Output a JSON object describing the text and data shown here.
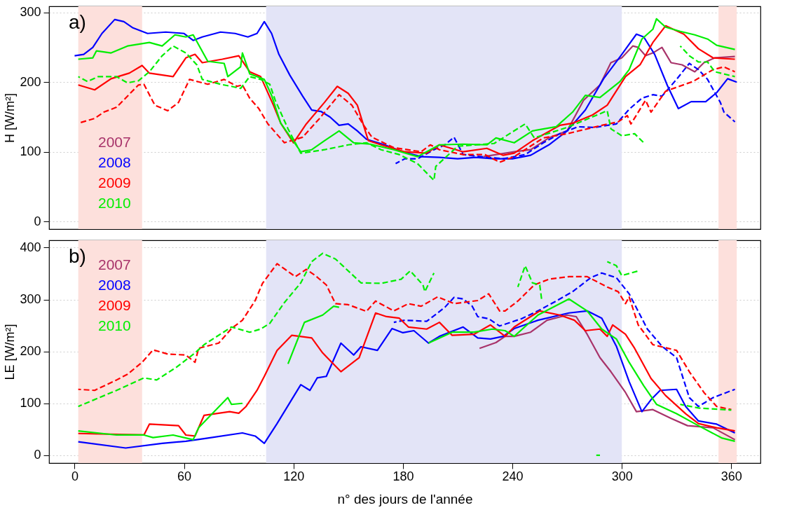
{
  "chart_data": [
    {
      "type": "line",
      "title": "a)",
      "ylabel": "H [W/m²]",
      "xlim": [
        -14,
        376
      ],
      "ylim": [
        -11,
        309
      ],
      "xticks": [
        0,
        60,
        120,
        180,
        240,
        300,
        360
      ],
      "yticks": [
        0,
        100,
        200,
        300
      ],
      "grid": "y",
      "legend": "left",
      "tick_labels": "y",
      "line_style": "solid",
      "marker": "none",
      "bands": [
        {
          "axis": "x",
          "from": 2,
          "to": 37,
          "color": "#fde0dc"
        },
        {
          "axis": "x",
          "from": 105,
          "to": 300,
          "color": "#e3e4f7"
        },
        {
          "axis": "x",
          "from": 353,
          "to": 363,
          "color": "#fde0dc"
        }
      ],
      "series": [
        {
          "name": "2007",
          "color": "#a8336a",
          "x": [
            224,
            241,
            250,
            260,
            270,
            279,
            288,
            294,
            300,
            306,
            309,
            313,
            317,
            322,
            327,
            333,
            340,
            345,
            351,
            362
          ],
          "values": [
            93,
            100,
            103,
            120,
            130,
            174,
            196,
            228,
            235,
            252,
            250,
            238,
            242,
            250,
            228,
            225,
            215,
            228,
            235,
            237
          ]
        },
        {
          "name": "2008",
          "color": "#0000ff",
          "x": [
            0,
            5,
            10,
            15,
            22,
            27,
            32,
            40,
            50,
            60,
            65,
            70,
            80,
            88,
            95,
            100,
            104,
            108,
            112,
            118,
            125,
            130,
            135,
            140,
            145,
            150,
            155,
            160,
            170,
            180,
            190,
            200,
            210,
            220,
            230,
            240,
            250,
            260,
            270,
            280,
            290,
            300,
            308,
            312,
            318,
            325,
            331,
            338,
            346,
            352,
            358,
            363
          ],
          "values": [
            238,
            240,
            250,
            270,
            290,
            287,
            278,
            270,
            272,
            270,
            260,
            265,
            272,
            270,
            265,
            270,
            287,
            270,
            240,
            210,
            180,
            160,
            158,
            150,
            138,
            140,
            130,
            118,
            110,
            100,
            93,
            92,
            90,
            92,
            90,
            90,
            95,
            110,
            130,
            160,
            205,
            240,
            269,
            265,
            240,
            195,
            162,
            172,
            172,
            185,
            205,
            200
          ]
        },
        {
          "color": "#0000ff",
          "line_style": "dashed",
          "x": [
            176,
            181,
            188,
            197,
            203,
            208,
            213,
            223,
            235,
            247,
            257,
            266,
            276,
            285,
            297,
            304,
            311,
            317,
            322,
            330,
            337,
            342,
            347,
            354,
            356,
            362
          ],
          "values": [
            83,
            90,
            90,
            103,
            110,
            121,
            96,
            93,
            90,
            96,
            113,
            126,
            136,
            135,
            140,
            161,
            177,
            182,
            180,
            204,
            227,
            218,
            204,
            171,
            157,
            143
          ]
        },
        {
          "name": "2009",
          "color": "#ff0000",
          "x": [
            2,
            11,
            20,
            30,
            37,
            41,
            54,
            61,
            66,
            70,
            81,
            90,
            96,
            102,
            109,
            113,
            120,
            127,
            137,
            144,
            150,
            155,
            161,
            168,
            181,
            193,
            200,
            213,
            226,
            235,
            241,
            251,
            266,
            273,
            284,
            292,
            302,
            310,
            317,
            324,
            334,
            342,
            350,
            362
          ],
          "values": [
            196,
            189,
            205,
            213,
            224,
            213,
            208,
            235,
            240,
            228,
            233,
            238,
            215,
            208,
            167,
            141,
            113,
            140,
            171,
            194,
            184,
            167,
            116,
            110,
            100,
            98,
            110,
            100,
            105,
            95,
            98,
            116,
            138,
            141,
            153,
            167,
            208,
            225,
            257,
            281,
            269,
            248,
            235,
            233
          ]
        },
        {
          "color": "#ff0000",
          "line_style": "dashed",
          "x": [
            2,
            11,
            16,
            23,
            35,
            38,
            44,
            51,
            57,
            63,
            73,
            82,
            89,
            92,
            96,
            101,
            106,
            115,
            125,
            134,
            145,
            152,
            158,
            163,
            175,
            190,
            195,
            200,
            213,
            225,
            233,
            241,
            257,
            270,
            289,
            298,
            303,
            305,
            313,
            316,
            324,
            339,
            350,
            356,
            362
          ],
          "values": [
            141,
            148,
            157,
            164,
            196,
            197,
            167,
            159,
            171,
            204,
            197,
            204,
            194,
            196,
            177,
            162,
            140,
            113,
            121,
            147,
            182,
            167,
            140,
            121,
            106,
            100,
            110,
            103,
            96,
            96,
            85,
            93,
            120,
            126,
            138,
            143,
            152,
            140,
            174,
            157,
            187,
            201,
            218,
            222,
            215
          ]
        },
        {
          "name": "2010",
          "color": "#00ee00",
          "x": [
            2,
            10,
            12,
            20,
            29,
            41,
            48,
            55,
            61,
            65,
            73,
            82,
            84,
            91,
            92,
            96,
            104,
            108,
            113,
            124,
            130,
            137,
            145,
            153,
            162,
            175,
            188,
            200,
            213,
            226,
            231,
            241,
            251,
            264,
            273,
            280,
            288,
            299,
            304,
            311,
            317,
            319,
            324,
            332,
            340,
            347,
            352,
            362
          ],
          "values": [
            233,
            235,
            245,
            242,
            252,
            257,
            252,
            268,
            265,
            268,
            230,
            227,
            208,
            222,
            242,
            212,
            204,
            181,
            141,
            100,
            103,
            116,
            130,
            113,
            111,
            103,
            93,
            110,
            111,
            110,
            120,
            113,
            130,
            136,
            157,
            181,
            178,
            201,
            218,
            262,
            276,
            291,
            279,
            273,
            268,
            262,
            253,
            247
          ]
        },
        {
          "color": "#00ee00",
          "line_style": "dashed",
          "x": [
            2,
            7,
            13,
            23,
            29,
            35,
            41,
            48,
            54,
            61,
            67,
            70,
            80,
            86,
            91,
            96,
            102,
            107,
            110,
            117,
            124,
            137,
            150,
            160,
            168,
            178,
            188,
            197,
            198,
            210,
            230,
            247,
            252,
            270,
            292,
            294,
            300,
            307,
            312,
            320,
            332,
            337,
            342,
            347,
            351,
            362
          ],
          "values": [
            208,
            201,
            208,
            208,
            199,
            202,
            215,
            238,
            252,
            242,
            225,
            204,
            197,
            194,
            191,
            208,
            204,
            197,
            174,
            133,
            98,
            103,
            110,
            113,
            103,
            96,
            83,
            59,
            79,
            108,
            112,
            140,
            120,
            135,
            159,
            133,
            123,
            126,
            113,
            null,
            252,
            238,
            229,
            229,
            215,
            208
          ]
        }
      ]
    },
    {
      "type": "line",
      "title": "b)",
      "ylabel": "LE [W/m²]",
      "xlabel": "n° des jours de l'année",
      "xlim": [
        -14,
        376
      ],
      "ylim": [
        -15,
        414
      ],
      "xticks": [
        0,
        60,
        120,
        180,
        240,
        300,
        360
      ],
      "yticks": [
        0,
        100,
        200,
        300,
        400
      ],
      "grid": "y",
      "legend": "top left",
      "line_style": "solid",
      "marker": "none",
      "bands": [
        {
          "axis": "x",
          "from": 2,
          "to": 37,
          "color": "#fde0dc"
        },
        {
          "axis": "x",
          "from": 105,
          "to": 300,
          "color": "#e3e4f7"
        },
        {
          "axis": "x",
          "from": 353,
          "to": 363,
          "color": "#fde0dc"
        }
      ],
      "series": [
        {
          "name": "2007",
          "color": "#a8336a",
          "x": [
            222,
            231,
            236,
            241,
            250,
            259,
            270,
            275,
            281,
            288,
            294,
            302,
            308,
            317,
            327,
            336,
            350,
            362
          ],
          "values": [
            206,
            217,
            229,
            229,
            237,
            260,
            270,
            267,
            233,
            188,
            161,
            121,
            84,
            88,
            71,
            57,
            53,
            30
          ]
        },
        {
          "name": "2008",
          "color": "#0000ff",
          "x": [
            2,
            28,
            48,
            61,
            73,
            92,
            99,
            104,
            111,
            124,
            129,
            133,
            138,
            146,
            153,
            157,
            166,
            174,
            180,
            186,
            194,
            200,
            213,
            221,
            228,
            235,
            241,
            254,
            271,
            281,
            289,
            297,
            304,
            311,
            316,
            321,
            330,
            335,
            342,
            352,
            362
          ],
          "values": [
            26,
            14,
            23,
            27,
            33,
            43,
            37,
            23,
            61,
            136,
            125,
            149,
            152,
            216,
            193,
            209,
            202,
            244,
            236,
            240,
            216,
            229,
            247,
            226,
            224,
            229,
            244,
            260,
            274,
            278,
            264,
            210,
            142,
            84,
            107,
            125,
            127,
            94,
            66,
            60,
            43
          ]
        },
        {
          "color": "#0000ff",
          "line_style": "dashed",
          "x": [
            175,
            181,
            193,
            199,
            203,
            208,
            213,
            218,
            221,
            227,
            233,
            245,
            254,
            264,
            273,
            283,
            289,
            297,
            304,
            314,
            322,
            330,
            337,
            342,
            350,
            362
          ],
          "values": [
            256,
            260,
            258,
            274,
            285,
            304,
            301,
            287,
            267,
            263,
            249,
            263,
            278,
            297,
            315,
            342,
            351,
            342,
            311,
            243,
            210,
            188,
            111,
            94,
            111,
            127
          ]
        },
        {
          "name": "2009",
          "color": "#ff0000",
          "x": [
            2,
            38,
            41,
            57,
            61,
            66,
            71,
            85,
            90,
            94,
            100,
            104,
            111,
            119,
            130,
            136,
            146,
            156,
            165,
            171,
            178,
            183,
            193,
            200,
            207,
            219,
            228,
            236,
            241,
            255,
            266,
            274,
            280,
            288,
            292,
            295,
            302,
            307,
            316,
            324,
            335,
            342,
            352,
            362
          ],
          "values": [
            42,
            39,
            60,
            57,
            39,
            37,
            77,
            84,
            81,
            94,
            125,
            152,
            202,
            231,
            226,
            197,
            161,
            188,
            274,
            267,
            264,
            247,
            243,
            256,
            231,
            233,
            251,
            229,
            247,
            278,
            270,
            260,
            240,
            243,
            229,
            251,
            233,
            206,
            148,
            115,
            80,
            61,
            53,
            47
          ]
        },
        {
          "color": "#ff0000",
          "line_style": "dashed",
          "x": [
            2,
            11,
            23,
            29,
            37,
            43,
            51,
            61,
            66,
            68,
            79,
            86,
            92,
            99,
            103,
            111,
            121,
            127,
            132,
            138,
            143,
            150,
            160,
            165,
            175,
            183,
            190,
            199,
            208,
            221,
            227,
            233,
            236,
            243,
            252,
            260,
            271,
            281,
            292,
            298,
            302,
            304,
            309,
            317,
            330,
            337,
            345,
            352,
            360
          ],
          "values": [
            127,
            125,
            145,
            156,
            179,
            203,
            195,
            193,
            179,
            206,
            216,
            244,
            260,
            298,
            331,
            369,
            344,
            358,
            346,
            328,
            292,
            290,
            277,
            297,
            278,
            292,
            287,
            305,
            292,
            298,
            311,
            278,
            278,
            297,
            328,
            339,
            344,
            344,
            324,
            315,
            292,
            305,
            251,
            213,
            202,
            161,
            121,
            94,
            88
          ]
        },
        {
          "name": "2010",
          "color": "#00ee00",
          "x": [
            2,
            23,
            38,
            43,
            54,
            65,
            68,
            84,
            86,
            92,
            93,
            117,
            126,
            136,
            142,
            145,
            146,
            194,
            207,
            219,
            229,
            236,
            241,
            254,
            271,
            281,
            289,
            297,
            304,
            312,
            319,
            330,
            342,
            355,
            362
          ],
          "values": [
            47,
            39,
            39,
            34,
            39,
            30,
            53,
            111,
            98,
            100,
            null,
            176,
            256,
            270,
            287,
            285,
            null,
            216,
            237,
            237,
            243,
            240,
            229,
            270,
            301,
            278,
            243,
            224,
            179,
            134,
            98,
            80,
            57,
            33,
            27
          ]
        },
        {
          "color": "#00ee00",
          "line_style": "dashed",
          "x": [
            2,
            23,
            38,
            45,
            56,
            66,
            71,
            86,
            96,
            102,
            107,
            115,
            124,
            130,
            136,
            143,
            147,
            157,
            168,
            179,
            184,
            191,
            192,
            197,
            198,
            243,
            247,
            251,
            255,
            256,
            257,
            286,
            288,
            289,
            292,
            297,
            300,
            309,
            310,
            332,
            342,
            360
          ],
          "values": [
            94,
            125,
            149,
            145,
            170,
            197,
            213,
            247,
            237,
            243,
            254,
            294,
            332,
            373,
            389,
            378,
            365,
            332,
            331,
            339,
            355,
            328,
            315,
            351,
            null,
            324,
            365,
            332,
            328,
            301,
            null,
            0,
            0,
            null,
            373,
            365,
            346,
            355,
            null,
            98,
            91,
            87
          ]
        }
      ]
    }
  ]
}
